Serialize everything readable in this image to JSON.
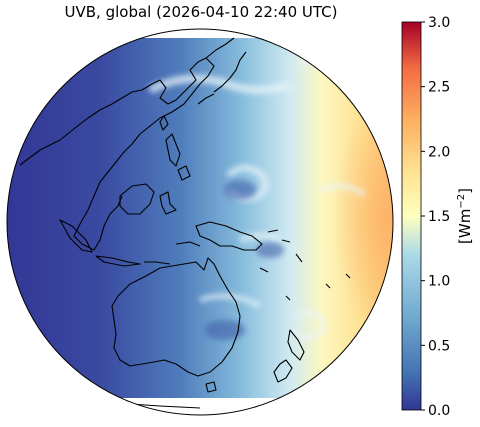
{
  "map": {
    "title": "UVB, global (2026-04-10 22:40 UTC)",
    "projection": "orthographic",
    "field": "UVB irradiance",
    "regions_visible": [
      "East Asia",
      "Southeast Asia",
      "Australia",
      "New Zealand",
      "Papua New Guinea",
      "Pacific Ocean"
    ],
    "palette": {
      "low": "#313695",
      "mid_low": "#4575b4",
      "mid": "#abd9e9",
      "center": "#ffffbf",
      "mid_high": "#fdae61",
      "high": "#a50026"
    },
    "coastline_color": "#000000"
  },
  "colorbar": {
    "min": 0.0,
    "max": 3.0,
    "ticks": [
      "0.0",
      "0.5",
      "1.0",
      "1.5",
      "2.0",
      "2.5",
      "3.0"
    ],
    "unit_label": "[Wm",
    "unit_exponent": "−2",
    "unit_close": "]"
  }
}
